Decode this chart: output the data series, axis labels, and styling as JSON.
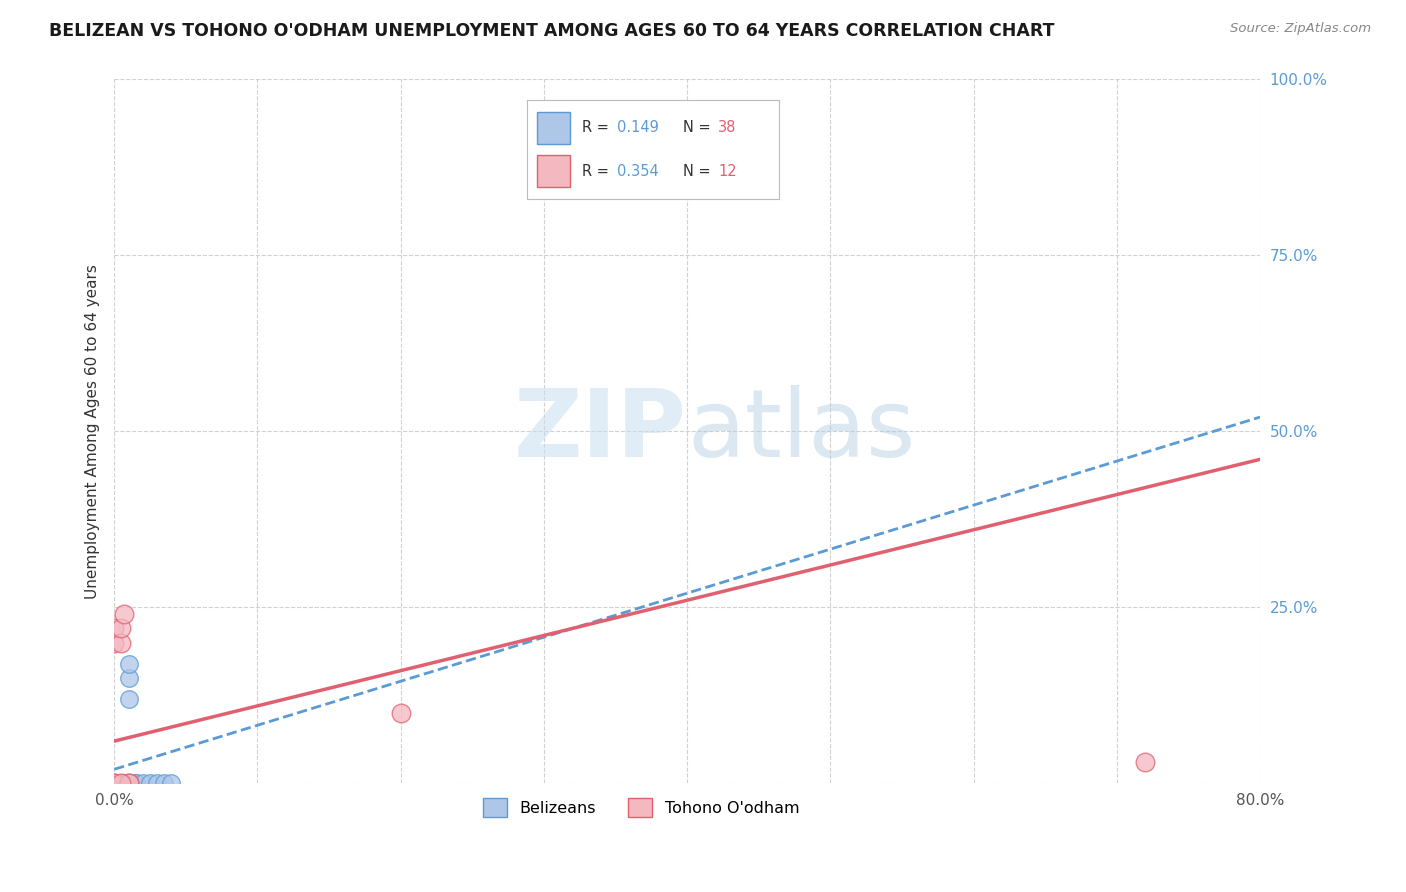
{
  "title": "BELIZEAN VS TOHONO O'ODHAM UNEMPLOYMENT AMONG AGES 60 TO 64 YEARS CORRELATION CHART",
  "source": "Source: ZipAtlas.com",
  "ylabel": "Unemployment Among Ages 60 to 64 years",
  "xlim": [
    0,
    0.8
  ],
  "ylim": [
    0,
    1.0
  ],
  "xticks": [
    0.0,
    0.1,
    0.2,
    0.3,
    0.4,
    0.5,
    0.6,
    0.7,
    0.8
  ],
  "xticklabels": [
    "0.0%",
    "",
    "",
    "",
    "",
    "",
    "",
    "",
    "80.0%"
  ],
  "yticks": [
    0.0,
    0.25,
    0.5,
    0.75,
    1.0
  ],
  "yticklabels": [
    "",
    "25.0%",
    "50.0%",
    "75.0%",
    "100.0%"
  ],
  "belizean_R": 0.149,
  "belizean_N": 38,
  "tohono_R": 0.354,
  "tohono_N": 12,
  "belizean_color": "#aec6e8",
  "belizean_edge_color": "#5b9bd5",
  "tohono_color": "#f4b8c1",
  "tohono_edge_color": "#e06070",
  "belizean_line_color": "#5b9bd5",
  "tohono_line_color": "#e06070",
  "legend_blue_label": "Belizeans",
  "legend_pink_label": "Tohono O'odham",
  "belizean_x": [
    0.0,
    0.0,
    0.0,
    0.0,
    0.0,
    0.0,
    0.0,
    0.0,
    0.0,
    0.0,
    0.0,
    0.0,
    0.0,
    0.0,
    0.0,
    0.0,
    0.0,
    0.0,
    0.0,
    0.0,
    0.003,
    0.003,
    0.003,
    0.005,
    0.005,
    0.005,
    0.007,
    0.007,
    0.01,
    0.01,
    0.01,
    0.015,
    0.015,
    0.02,
    0.025,
    0.03,
    0.035,
    0.04
  ],
  "belizean_y": [
    0.0,
    0.0,
    0.0,
    0.0,
    0.0,
    0.0,
    0.0,
    0.0,
    0.0,
    0.0,
    0.0,
    0.0,
    0.0,
    0.0,
    0.0,
    0.0,
    0.0,
    0.0,
    0.0,
    0.0,
    0.0,
    0.0,
    0.0,
    0.0,
    0.0,
    0.0,
    0.0,
    0.0,
    0.12,
    0.15,
    0.17,
    0.0,
    0.0,
    0.0,
    0.0,
    0.0,
    0.0,
    0.0
  ],
  "tohono_x": [
    0.0,
    0.0,
    0.0,
    0.0,
    0.005,
    0.005,
    0.007,
    0.2,
    0.72,
    0.01,
    0.01,
    0.005
  ],
  "tohono_y": [
    0.0,
    0.2,
    0.22,
    0.0,
    0.2,
    0.22,
    0.24,
    0.1,
    0.03,
    0.0,
    0.0,
    0.0
  ],
  "belizean_trend_x": [
    0.0,
    0.8
  ],
  "belizean_trend_y": [
    0.02,
    0.52
  ],
  "tohono_trend_x": [
    0.0,
    0.8
  ],
  "tohono_trend_y": [
    0.06,
    0.46
  ]
}
